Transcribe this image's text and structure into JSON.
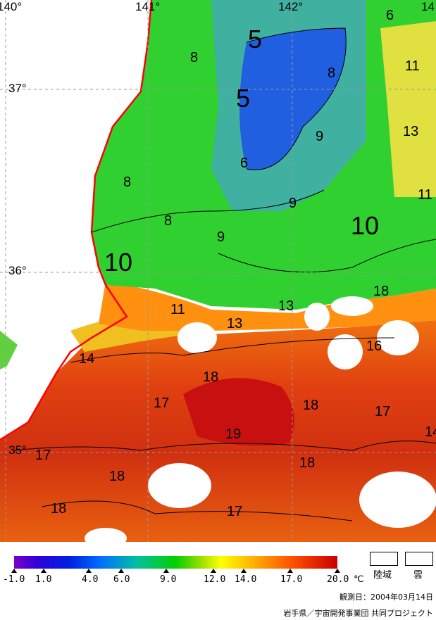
{
  "map": {
    "lon_labels": [
      "140°",
      "141°",
      "142°",
      "14"
    ],
    "lat_labels": [
      "37°",
      "36°",
      "35°"
    ],
    "isotherm_labels": [
      "5",
      "5",
      "6",
      "8",
      "8",
      "8",
      "8",
      "9",
      "9",
      "9",
      "10",
      "10",
      "11",
      "11",
      "13",
      "13",
      "13",
      "14",
      "16",
      "17",
      "17",
      "17",
      "17",
      "18",
      "18",
      "18",
      "18",
      "18",
      "18",
      "19",
      "6",
      "11",
      "14"
    ]
  },
  "legend": {
    "scale_ticks": [
      "-1.0",
      "1.0",
      "4.0",
      "6.0",
      "9.0",
      "12.0",
      "14.0",
      "17.0",
      "20.0"
    ],
    "unit": "℃",
    "land_label": "陸域",
    "cloud_label": "雲",
    "colors": {
      "cold": "#7a00c8",
      "mid": "#00d000",
      "warm": "#c80000",
      "coast": "#ff0000"
    }
  },
  "observation_date": "観測日：2004年03月14日",
  "credit": "岩手県／宇宙開発事業団 共同プロジェクト"
}
